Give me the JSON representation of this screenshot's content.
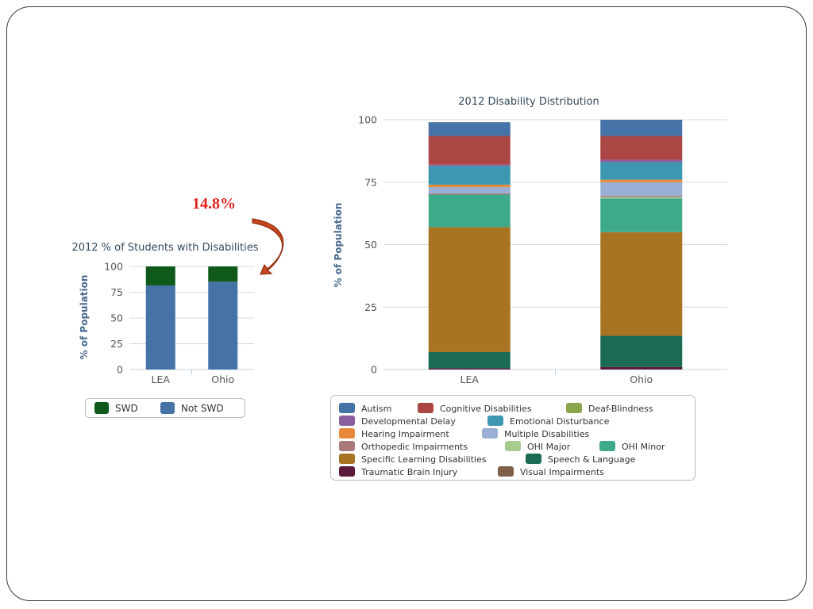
{
  "callout": {
    "text": "14.8%"
  },
  "small_chart": {
    "chart_data": {
      "type": "bar",
      "stacked": true,
      "title": "2012 % of Students with Disabilities",
      "ylabel": "% of Population",
      "ylim": [
        0,
        100
      ],
      "yticks": [
        0,
        25,
        50,
        75,
        100
      ],
      "categories": [
        "LEA",
        "Ohio"
      ],
      "series": [
        {
          "name": "Not SWD",
          "color": "#4572a7",
          "values": [
            81.5,
            85.2
          ]
        },
        {
          "name": "SWD",
          "color": "#0f5a1b",
          "values": [
            18.5,
            14.8
          ]
        }
      ],
      "legend": {
        "position": "bottom",
        "order": [
          "SWD",
          "Not SWD"
        ]
      },
      "grid": true
    }
  },
  "main_chart": {
    "chart_data": {
      "type": "bar",
      "stacked": true,
      "title": "2012 Disability Distribution",
      "ylabel": "% of Population",
      "ylim": [
        0,
        100
      ],
      "yticks": [
        0,
        25,
        50,
        75,
        100
      ],
      "categories": [
        "LEA",
        "Ohio"
      ],
      "series": [
        {
          "name": "Traumatic Brain Injury",
          "color": "#5c1a3a",
          "values": [
            0.5,
            1.0
          ]
        },
        {
          "name": "Speech & Language",
          "color": "#1a6a55",
          "values": [
            6.5,
            12.5
          ]
        },
        {
          "name": "Specific Learning Disabilities",
          "color": "#a87424",
          "values": [
            50.0,
            41.5
          ]
        },
        {
          "name": "OHI Minor",
          "color": "#3daa8a",
          "values": [
            13.0,
            13.5
          ]
        },
        {
          "name": "OHI Major",
          "color": "#a8cc90",
          "values": [
            0.0,
            0.5
          ]
        },
        {
          "name": "Orthopedic Impairments",
          "color": "#a87a7a",
          "values": [
            0.5,
            0.5
          ]
        },
        {
          "name": "Multiple Disabilities",
          "color": "#9aafd6",
          "values": [
            2.5,
            5.5
          ]
        },
        {
          "name": "Hearing Impairment",
          "color": "#e8883a",
          "values": [
            1.0,
            1.0
          ]
        },
        {
          "name": "Emotional Disturbance",
          "color": "#3c97b0",
          "values": [
            7.5,
            7.0
          ]
        },
        {
          "name": "Developmental Delay",
          "color": "#8a5e9e",
          "values": [
            0.5,
            1.0
          ]
        },
        {
          "name": "Cognitive Disabilities",
          "color": "#aa4644",
          "values": [
            11.5,
            9.5
          ]
        },
        {
          "name": "Autism",
          "color": "#4572a7",
          "values": [
            5.5,
            6.5
          ]
        },
        {
          "name": "Visual Impairments",
          "color": "#805f48",
          "values": [
            0.0,
            0.0
          ]
        },
        {
          "name": "Deaf-Blindness",
          "color": "#89a54e",
          "values": [
            0.0,
            0.0
          ]
        }
      ],
      "legend": {
        "position": "bottom",
        "rows": [
          [
            "Autism",
            "Cognitive Disabilities",
            "Deaf-Blindness"
          ],
          [
            "Developmental Delay",
            "Emotional Disturbance"
          ],
          [
            "Hearing Impairment",
            "Multiple Disabilities"
          ],
          [
            "Orthopedic Impairments",
            "OHI Major",
            "OHI Minor"
          ],
          [
            "Specific Learning Disabilities",
            "Speech & Language"
          ],
          [
            "Traumatic Brain Injury",
            "Visual Impairments"
          ]
        ]
      },
      "grid": true
    }
  }
}
